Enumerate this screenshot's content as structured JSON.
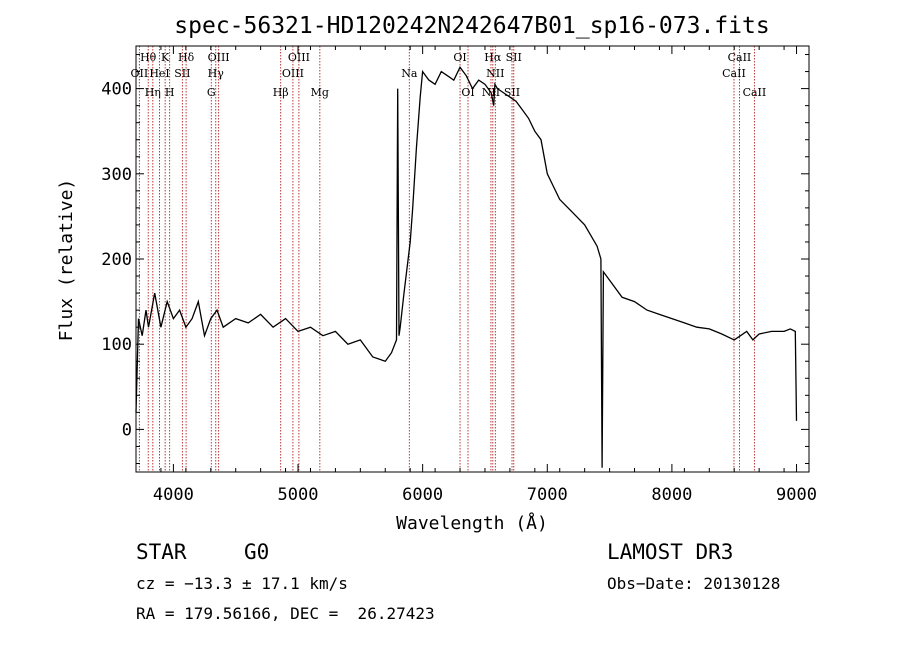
{
  "chart_data": {
    "type": "line",
    "title": "spec-56321-HD120242N242647B01_sp16-073.fits",
    "xlabel": "Wavelength (Å)",
    "ylabel": "Flux (relative)",
    "xlim": [
      3700,
      9100
    ],
    "ylim": [
      -50,
      450
    ],
    "x_ticks": [
      4000,
      5000,
      6000,
      7000,
      8000,
      9000
    ],
    "y_ticks": [
      0,
      100,
      200,
      300,
      400
    ],
    "grid": false,
    "series": [
      {
        "name": "flux",
        "x": [
          3700,
          3720,
          3750,
          3780,
          3800,
          3850,
          3900,
          3950,
          4000,
          4050,
          4100,
          4150,
          4200,
          4250,
          4300,
          4350,
          4400,
          4500,
          4600,
          4700,
          4800,
          4900,
          5000,
          5100,
          5200,
          5300,
          5400,
          5500,
          5600,
          5700,
          5750,
          5790,
          5800,
          5810,
          5820,
          5850,
          5900,
          5920,
          5950,
          5980,
          6000,
          6050,
          6100,
          6150,
          6200,
          6250,
          6300,
          6350,
          6400,
          6450,
          6500,
          6550,
          6570,
          6580,
          6600,
          6650,
          6700,
          6750,
          6800,
          6850,
          6900,
          6950,
          7000,
          7050,
          7100,
          7200,
          7300,
          7400,
          7430,
          7440,
          7450,
          7500,
          7600,
          7700,
          7800,
          7900,
          8000,
          8100,
          8200,
          8300,
          8400,
          8500,
          8550,
          8600,
          8650,
          8700,
          8800,
          8900,
          8950,
          8990,
          9000
        ],
        "values": [
          20,
          130,
          110,
          140,
          120,
          160,
          120,
          150,
          130,
          140,
          120,
          130,
          150,
          110,
          130,
          140,
          120,
          130,
          125,
          135,
          120,
          130,
          115,
          120,
          110,
          115,
          100,
          105,
          85,
          80,
          90,
          105,
          400,
          110,
          120,
          160,
          220,
          260,
          330,
          390,
          420,
          410,
          405,
          420,
          415,
          410,
          425,
          415,
          400,
          410,
          405,
          395,
          380,
          405,
          400,
          395,
          390,
          385,
          375,
          365,
          350,
          340,
          300,
          285,
          270,
          255,
          240,
          215,
          200,
          -45,
          185,
          175,
          155,
          150,
          140,
          135,
          130,
          125,
          120,
          118,
          112,
          105,
          110,
          115,
          105,
          112,
          115,
          115,
          118,
          115,
          10
        ]
      }
    ],
    "line_markers": [
      {
        "wavelength": 3727,
        "label": "OII",
        "row": 1
      },
      {
        "wavelength": 3798,
        "label": "Hθ",
        "row": 0
      },
      {
        "wavelength": 3835,
        "label": "Hη",
        "row": 2
      },
      {
        "wavelength": 3889,
        "label": "HeI",
        "row": 1
      },
      {
        "wavelength": 3934,
        "label": "K",
        "row": 0
      },
      {
        "wavelength": 3970,
        "label": "H",
        "row": 2
      },
      {
        "wavelength": 4072,
        "label": "SII",
        "row": 1
      },
      {
        "wavelength": 4102,
        "label": "Hδ",
        "row": 0
      },
      {
        "wavelength": 4304,
        "label": "G",
        "row": 2
      },
      {
        "wavelength": 4340,
        "label": "Hγ",
        "row": 1
      },
      {
        "wavelength": 4363,
        "label": "OIII",
        "row": 0
      },
      {
        "wavelength": 4861,
        "label": "Hβ",
        "row": 2
      },
      {
        "wavelength": 4959,
        "label": "OIII",
        "row": 1
      },
      {
        "wavelength": 5007,
        "label": "OIII",
        "row": 0
      },
      {
        "wavelength": 5175,
        "label": "Mg",
        "row": 2
      },
      {
        "wavelength": 5893,
        "label": "Na",
        "row": 1
      },
      {
        "wavelength": 6300,
        "label": "OI",
        "row": 0
      },
      {
        "wavelength": 6364,
        "label": "OI",
        "row": 2
      },
      {
        "wavelength": 6548,
        "label": "NII",
        "row": 2
      },
      {
        "wavelength": 6563,
        "label": "Hα",
        "row": 0
      },
      {
        "wavelength": 6583,
        "label": "NII",
        "row": 1
      },
      {
        "wavelength": 6717,
        "label": "SII",
        "row": 2
      },
      {
        "wavelength": 6731,
        "label": "SII",
        "row": 0
      },
      {
        "wavelength": 8498,
        "label": "CaII",
        "row": 1
      },
      {
        "wavelength": 8542,
        "label": "CaII",
        "row": 0
      },
      {
        "wavelength": 8662,
        "label": "CaII",
        "row": 2
      }
    ],
    "colors": {
      "flux": "#000000",
      "markers": "#b22222",
      "axes": "#000000"
    }
  },
  "info": {
    "object_class": "STAR",
    "subclass": "G0",
    "survey": "LAMOST DR3",
    "cz": "cz = −13.3 ± 17.1 km/s",
    "obs_date": "Obs−Date: 20130128",
    "radec": "RA = 179.56166, DEC =  26.27423"
  }
}
